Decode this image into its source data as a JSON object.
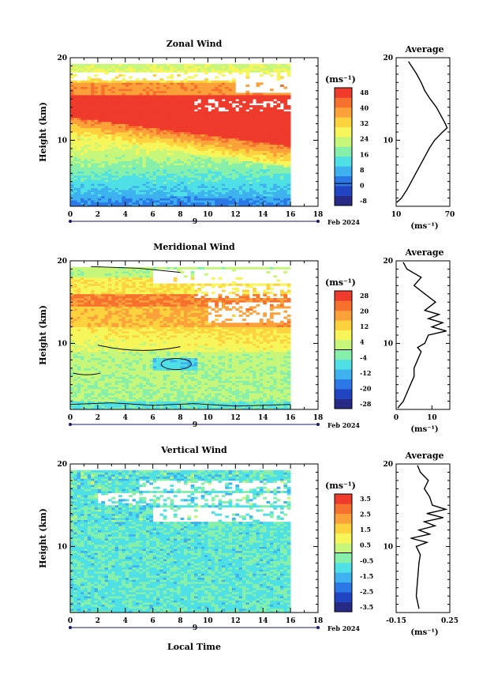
{
  "figure": {
    "time_axis_title": "Local Time",
    "date_label": "Feb 2024",
    "day_label": "9"
  },
  "colors": {
    "blank": "#ffffff",
    "contour": "#000000"
  },
  "chart_data": [
    {
      "type": "heatmap",
      "title": "Zonal Wind",
      "ylabel": "Height (km)",
      "xlim": [
        0,
        18
      ],
      "ylim": [
        2,
        20
      ],
      "x_ticks": [
        0,
        2,
        4,
        6,
        8,
        10,
        12,
        14,
        16,
        18
      ],
      "y_ticks": [
        10,
        20
      ],
      "data_x_end": 16,
      "colorbar": {
        "unit": "(ms⁻¹)",
        "labels": [
          "48",
          "40",
          "32",
          "24",
          "16",
          "8",
          "0",
          "-8"
        ],
        "colors": [
          "#262a85",
          "#2145c2",
          "#2b78e6",
          "#3eb2ef",
          "#4fe0e6",
          "#86f0aa",
          "#c6f77a",
          "#f6f55a",
          "#fdd23f",
          "#fba13a",
          "#f7712e",
          "#ee3b2c"
        ],
        "vmin": -12,
        "vmax": 52
      },
      "profile": {
        "title": "Average",
        "xlabel": "(ms⁻¹)",
        "xlim": [
          10,
          70
        ],
        "x_tick_labels": [
          "10",
          "70"
        ],
        "x_ticks": [
          10,
          70
        ],
        "heights": [
          2.5,
          3,
          4,
          5,
          6,
          7,
          8,
          9,
          10,
          11,
          11.5,
          12,
          13,
          14,
          15,
          16,
          17,
          18,
          19,
          19.5
        ],
        "values": [
          11,
          16,
          22,
          27,
          32,
          37,
          42,
          47,
          53,
          62,
          67,
          65,
          60,
          55,
          48,
          42,
          38,
          33,
          27,
          24
        ]
      }
    },
    {
      "type": "heatmap",
      "title": "Meridional Wind",
      "ylabel": "Height (km)",
      "xlim": [
        0,
        18
      ],
      "ylim": [
        2,
        20
      ],
      "x_ticks": [
        0,
        2,
        4,
        6,
        8,
        10,
        12,
        14,
        16,
        18
      ],
      "y_ticks": [
        10,
        20
      ],
      "data_x_end": 16,
      "colorbar": {
        "unit": "(ms⁻¹)",
        "labels": [
          "28",
          "20",
          "12",
          "4",
          "-4",
          "-12",
          "-20",
          "-28"
        ],
        "colors": [
          "#262a85",
          "#2145c2",
          "#2b78e6",
          "#3eb2ef",
          "#4fe0e6",
          "#86f0aa",
          "#c6f77a",
          "#f6f55a",
          "#fdd23f",
          "#fba13a",
          "#f7712e",
          "#ee3b2c"
        ],
        "vmin": -32,
        "vmax": 32
      },
      "profile": {
        "title": "Average",
        "xlabel": "(ms⁻¹)",
        "xlim": [
          0,
          15
        ],
        "x_tick_labels": [
          "0",
          "10"
        ],
        "x_ticks": [
          0,
          10
        ],
        "heights": [
          2.2,
          3,
          4,
          5,
          6,
          7,
          8,
          9,
          9.5,
          10,
          11,
          11.5,
          12,
          12.5,
          13,
          13.5,
          14,
          15,
          16,
          17,
          18,
          19,
          19.8
        ],
        "values": [
          0.5,
          2,
          3,
          4,
          5,
          5,
          6,
          7,
          6,
          8,
          9,
          14,
          10,
          13,
          9,
          12,
          8,
          11,
          8,
          5,
          7,
          3,
          2
        ]
      }
    },
    {
      "type": "heatmap",
      "title": "Vertical Wind",
      "ylabel": "Height (km)",
      "xlabel": "Local Time",
      "xlim": [
        0,
        18
      ],
      "ylim": [
        2,
        20
      ],
      "x_ticks": [
        0,
        2,
        4,
        6,
        8,
        10,
        12,
        14,
        16,
        18
      ],
      "y_ticks": [
        10,
        20
      ],
      "data_x_end": 16,
      "colorbar": {
        "unit": "(ms⁻¹)",
        "labels": [
          "3.5",
          "2.5",
          "1.5",
          "0.5",
          "-0.5",
          "-1.5",
          "-2.5",
          "-3.5"
        ],
        "colors": [
          "#262a85",
          "#2145c2",
          "#2b78e6",
          "#3eb2ef",
          "#4fe0e6",
          "#86f0aa",
          "#c6f77a",
          "#f6f55a",
          "#fdd23f",
          "#fba13a",
          "#f7712e",
          "#ee3b2c"
        ],
        "vmin": -4,
        "vmax": 4
      },
      "profile": {
        "title": "Average",
        "xlabel": "(ms⁻¹)",
        "xlim": [
          -0.15,
          0.25
        ],
        "x_tick_labels": [
          "-0.15",
          "0.25"
        ],
        "x_ticks": [
          -0.15,
          0.25
        ],
        "heights": [
          2.5,
          4,
          6,
          8,
          9,
          10,
          10.5,
          11,
          11.5,
          12,
          12.5,
          13,
          13.5,
          14,
          14.5,
          15,
          16,
          17,
          18,
          19,
          19.8
        ],
        "values": [
          0.02,
          0.0,
          0.01,
          0.02,
          0.03,
          0.0,
          0.08,
          -0.04,
          0.1,
          0.02,
          0.14,
          0.06,
          0.2,
          0.08,
          0.22,
          0.12,
          0.1,
          0.06,
          0.09,
          0.03,
          0.01
        ]
      }
    }
  ]
}
